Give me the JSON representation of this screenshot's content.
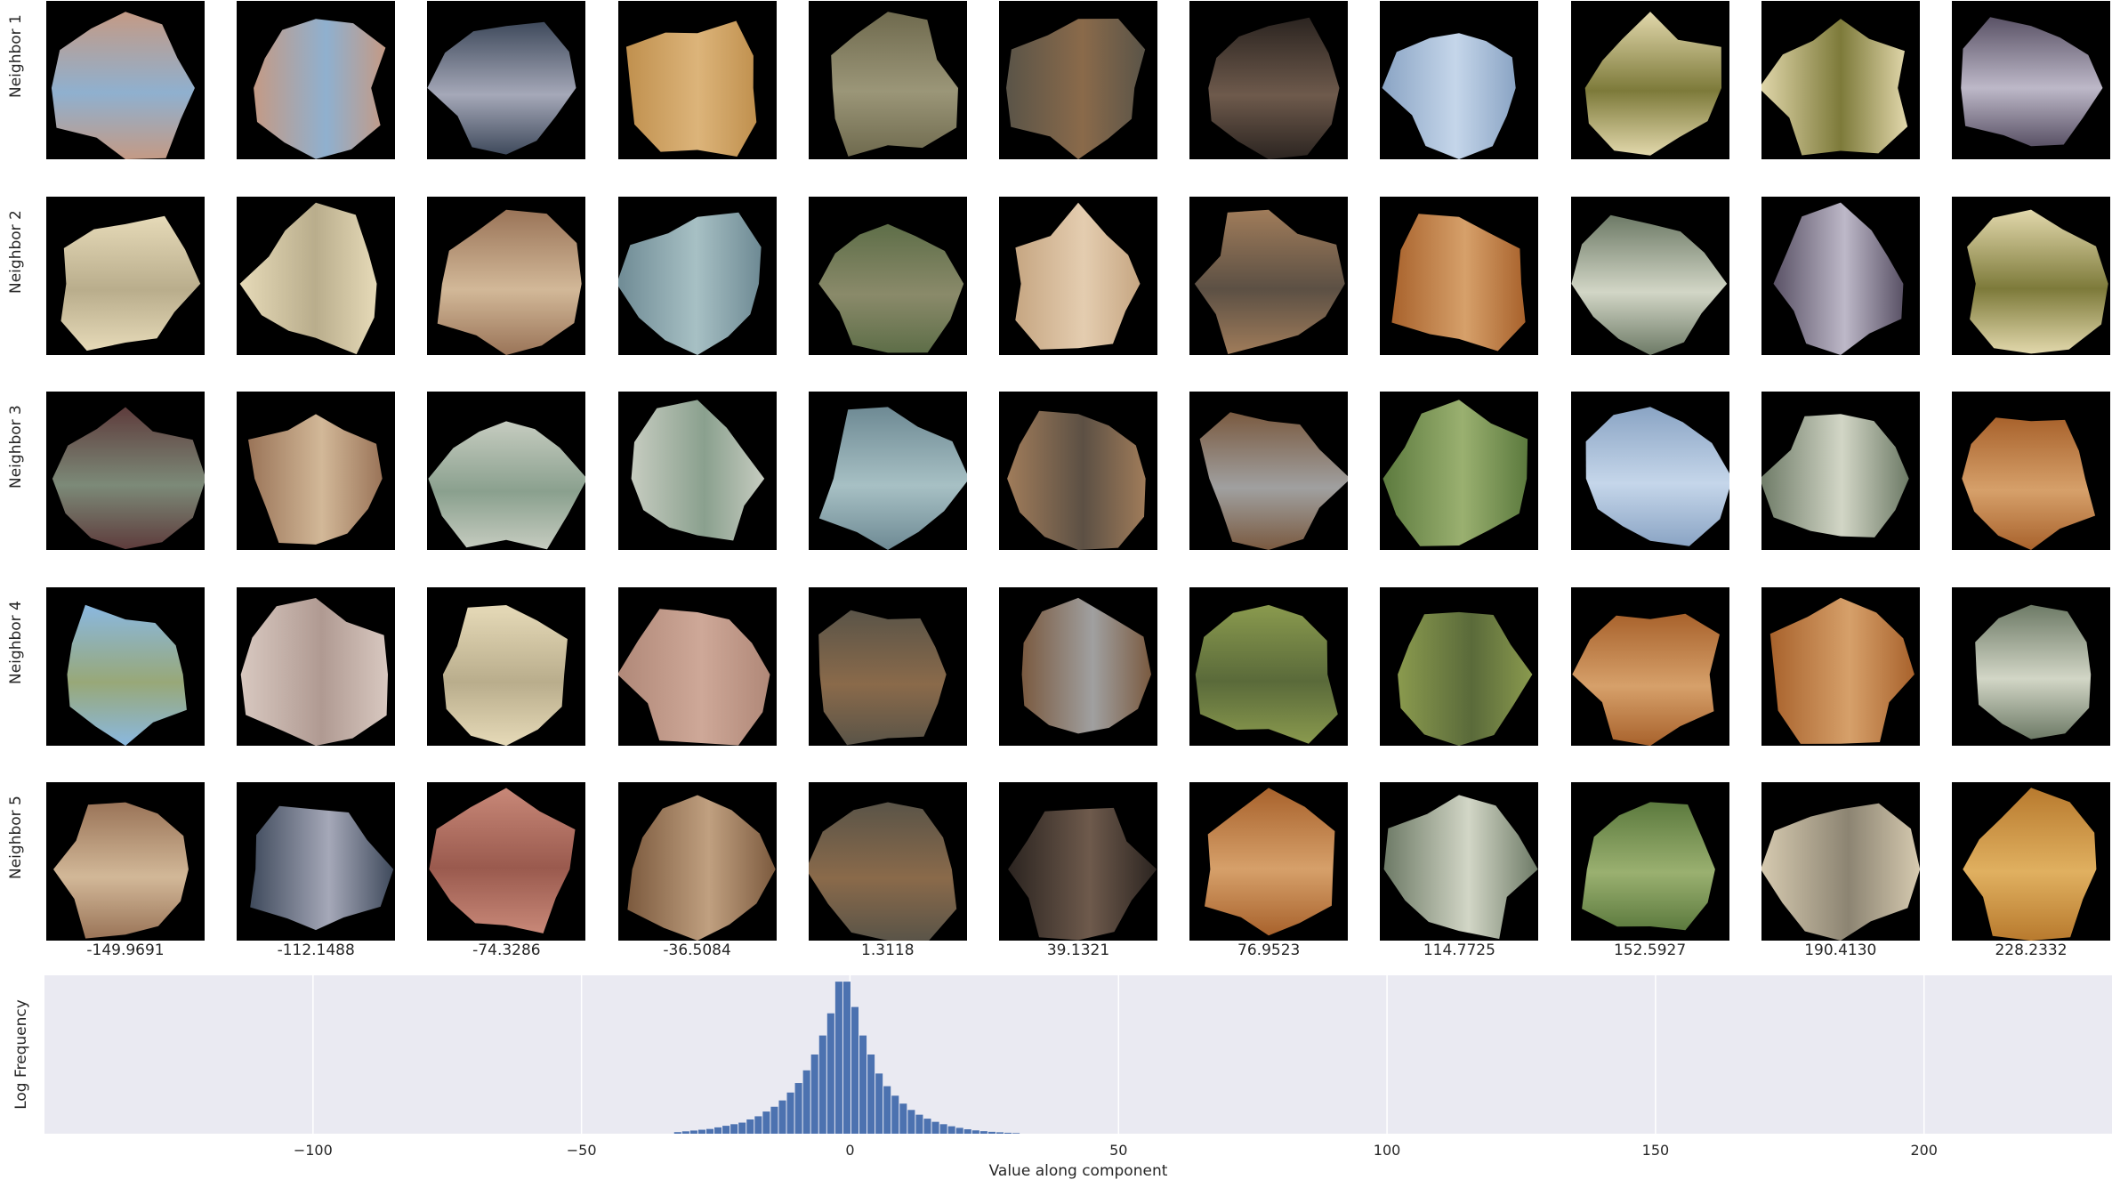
{
  "row_labels": [
    "Neighbor 1",
    "Neighbor 2",
    "Neighbor 3",
    "Neighbor 4",
    "Neighbor 5"
  ],
  "column_values": [
    "-149.9691",
    "-112.1488",
    "-74.3286",
    "-36.5084",
    "1.3118",
    "39.1321",
    "76.9523",
    "114.7725",
    "152.5927",
    "190.4130",
    "228.2332"
  ],
  "patches": [
    [
      "pink-fur-blue",
      "pink-fur-blue",
      "dark-blue-fur",
      "orange-mottled",
      "olive-stone",
      "rust-stone",
      "dark-fur",
      "light-blue-water",
      "cream-grass",
      "cream-grass",
      "purple-stripes"
    ],
    [
      "cream-text",
      "cream-text",
      "brown-fur-neck",
      "teal-spots",
      "green-mottled",
      "tan-fur",
      "tan-brown-fur",
      "orange-stripes",
      "green-bark",
      "purple-stripes",
      "cream-grass"
    ],
    [
      "maroon-fabric",
      "brown-fur-neck",
      "pale-green-fabric",
      "pale-green-fabric",
      "teal-spots",
      "tan-brown-fur",
      "brown-grey-fur",
      "green-camo",
      "light-blue-water",
      "green-bark",
      "orange-stripes"
    ],
    [
      "green-water",
      "white-fur",
      "cream-text",
      "pink-plaid",
      "rust-stone",
      "brown-grey-fur",
      "green-stripes",
      "green-stripes",
      "orange-stripes",
      "orange-stripes",
      "green-bark"
    ],
    [
      "brown-fur-neck",
      "dark-blue-fur",
      "pink-rock",
      "brown-fur",
      "rust-stone",
      "dark-fur",
      "orange-stripes",
      "green-bark",
      "green-camo",
      "beige-wood",
      "gold-stripes"
    ]
  ],
  "patch_palette": {
    "pink-fur-blue": [
      "#c49a85",
      "#8fb0cf"
    ],
    "dark-blue-fur": [
      "#3f4a5c",
      "#a5a8b8"
    ],
    "orange-mottled": [
      "#c0904e",
      "#dcb47a"
    ],
    "olive-stone": [
      "#6f6a4e",
      "#9b9678"
    ],
    "rust-stone": [
      "#5a5448",
      "#8a6a4a"
    ],
    "dark-fur": [
      "#2b2420",
      "#6e5a4c"
    ],
    "light-blue-water": [
      "#8aa4c4",
      "#c5d6ea"
    ],
    "cream-grass": [
      "#e2d8ac",
      "#7d7a3a"
    ],
    "purple-stripes": [
      "#5a5266",
      "#bdb8c8"
    ],
    "cream-text": [
      "#e6dab8",
      "#b9ad8c"
    ],
    "brown-fur-neck": [
      "#9a7458",
      "#d2b898"
    ],
    "teal-spots": [
      "#6e8a94",
      "#a7c0c4"
    ],
    "green-mottled": [
      "#5e6e48",
      "#8a8a6a"
    ],
    "tan-fur": [
      "#c6a682",
      "#e4cdb0"
    ],
    "tan-brown-fur": [
      "#a07c5a",
      "#5c5044"
    ],
    "orange-stripes": [
      "#a8622c",
      "#d6a06a"
    ],
    "green-bark": [
      "#6d7a66",
      "#d2d6c6"
    ],
    "maroon-fabric": [
      "#5e3c3c",
      "#7c8a78"
    ],
    "pale-green-fabric": [
      "#c6ccc0",
      "#8aa08e"
    ],
    "green-camo": [
      "#5c7a3e",
      "#9ab070"
    ],
    "green-water": [
      "#8ab8e0",
      "#98a878"
    ],
    "white-fur": [
      "#d8c8c0",
      "#b09a92"
    ],
    "pink-plaid": [
      "#b08878",
      "#cea898"
    ],
    "brown-grey-fur": [
      "#7a5a40",
      "#a0a0a0"
    ],
    "green-stripes": [
      "#8a9a4e",
      "#5a6a3a"
    ],
    "pink-rock": [
      "#c88878",
      "#9a5a4e"
    ],
    "brown-fur": [
      "#7c5a3e",
      "#c0a080"
    ],
    "beige-wood": [
      "#d6cab0",
      "#8c8472"
    ],
    "gold-stripes": [
      "#b87a2e",
      "#e0b060"
    ]
  },
  "chart_data": {
    "type": "bar",
    "title": "",
    "xlabel": "Value along component",
    "ylabel": "Log Frequency",
    "xlim": [
      -150,
      235
    ],
    "ylim": [
      0,
      1.0
    ],
    "xticks": [
      -100,
      -50,
      0,
      50,
      100,
      150,
      200
    ],
    "xtick_labels": [
      "−100",
      "−50",
      "0",
      "50",
      "100",
      "150",
      "200"
    ],
    "grid": true,
    "bin_width": 1.5,
    "x": [
      -32,
      -30.5,
      -29,
      -27.5,
      -26,
      -24.5,
      -23,
      -21.5,
      -20,
      -18.5,
      -17,
      -15.5,
      -14,
      -12.5,
      -11,
      -9.5,
      -8,
      -6.5,
      -5,
      -3.5,
      -2,
      -0.5,
      1,
      2.5,
      4,
      5.5,
      7,
      8.5,
      10,
      11.5,
      13,
      14.5,
      16,
      17.5,
      19,
      20.5,
      22,
      23.5,
      25,
      26.5,
      28,
      29.5,
      31
    ],
    "values": [
      0.01,
      0.015,
      0.02,
      0.025,
      0.03,
      0.04,
      0.05,
      0.06,
      0.07,
      0.09,
      0.11,
      0.14,
      0.17,
      0.21,
      0.26,
      0.32,
      0.4,
      0.5,
      0.62,
      0.76,
      0.96,
      0.96,
      0.8,
      0.62,
      0.5,
      0.38,
      0.3,
      0.24,
      0.19,
      0.15,
      0.12,
      0.095,
      0.075,
      0.06,
      0.047,
      0.037,
      0.028,
      0.021,
      0.016,
      0.012,
      0.009,
      0.006,
      0.004
    ],
    "bar_color": "#4c72b0",
    "background_color": "#eaeaf2"
  }
}
